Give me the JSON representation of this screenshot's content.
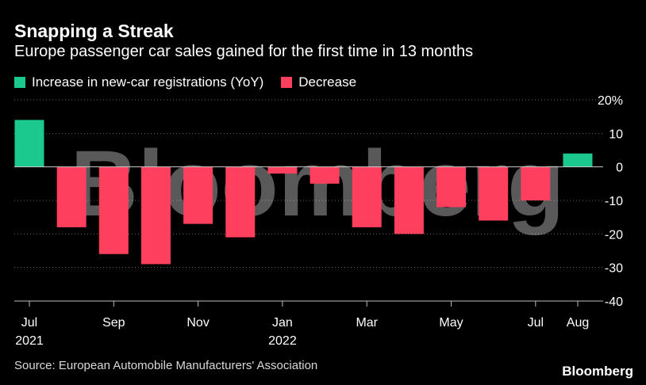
{
  "title": "Snapping a Streak",
  "subtitle": "Europe passenger car sales gained for the first time in 13 months",
  "source": "Source: European Automobile Manufacturers' Association",
  "brand": "Bloomberg",
  "watermark": "Bloomberg",
  "colors": {
    "increase": "#1bc98e",
    "decrease": "#ff3f5e",
    "background": "#000000",
    "grid": "#666666"
  },
  "legend": [
    {
      "label": "Increase in new-car registrations (YoY)",
      "color": "#1bc98e"
    },
    {
      "label": "Decrease",
      "color": "#ff3f5e"
    }
  ],
  "chart_data": {
    "type": "bar",
    "title": "Snapping a Streak",
    "subtitle": "Europe passenger car sales gained for the first time in 13 months",
    "categories": [
      "Jul 2021",
      "Aug 2021",
      "Sep 2021",
      "Oct 2021",
      "Nov 2021",
      "Dec 2021",
      "Jan 2022",
      "Feb 2022",
      "Mar 2022",
      "Apr 2022",
      "May 2022",
      "Jun 2022",
      "Jul 2022",
      "Aug 2022"
    ],
    "values": [
      14,
      -18,
      -26,
      -29,
      -17,
      -21,
      -2,
      -5,
      -18,
      -20,
      -12,
      -16,
      -10,
      4
    ],
    "ylim": [
      -40,
      20
    ],
    "yticks": [
      20,
      10,
      0,
      -10,
      -20,
      -30,
      -40
    ],
    "ytick_labels": [
      "20%",
      "10",
      "0",
      "-10",
      "-20",
      "-30",
      "-40"
    ],
    "xtick_labels": [
      {
        "index": 0,
        "line1": "Jul",
        "line2": "2021"
      },
      {
        "index": 2,
        "line1": "Sep",
        "line2": ""
      },
      {
        "index": 4,
        "line1": "Nov",
        "line2": ""
      },
      {
        "index": 6,
        "line1": "Jan",
        "line2": "2022"
      },
      {
        "index": 8,
        "line1": "Mar",
        "line2": ""
      },
      {
        "index": 10,
        "line1": "May",
        "line2": ""
      },
      {
        "index": 12,
        "line1": "Jul",
        "line2": ""
      },
      {
        "index": 13,
        "line1": "Aug",
        "line2": ""
      }
    ],
    "grid": true,
    "legend_position": "top-left",
    "ylabel": "",
    "xlabel": ""
  }
}
